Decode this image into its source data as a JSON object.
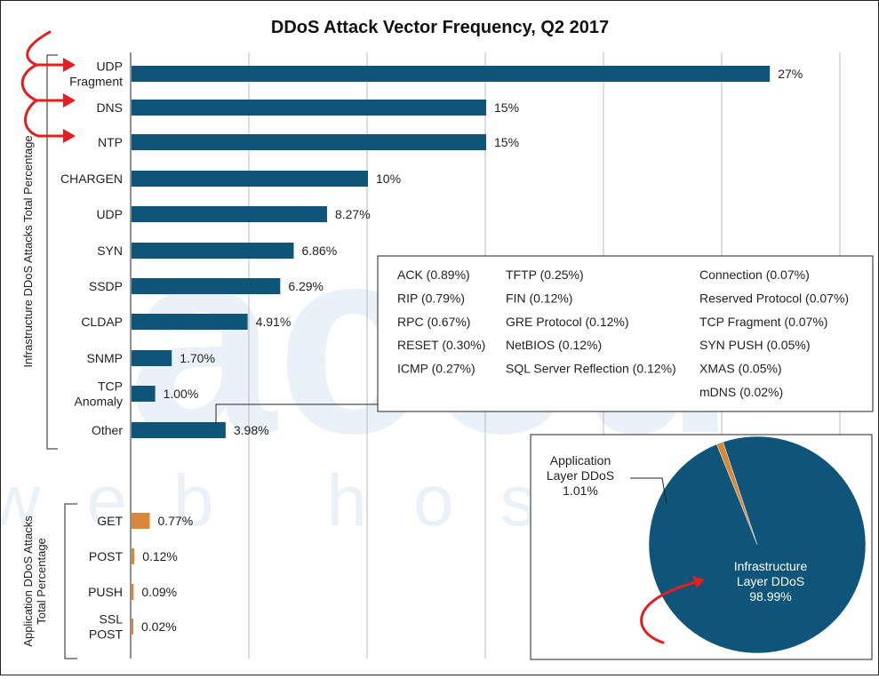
{
  "chart_data": {
    "type": "bar",
    "orientation": "horizontal",
    "title": "DDoS Attack Vector Frequency, Q2 2017",
    "xlim": [
      0,
      30
    ],
    "grid": true,
    "colors": {
      "infrastructure": "#0f5479",
      "application": "#d9883a"
    },
    "groups": [
      {
        "label": "Infrastructure DDoS Attacks Total Percentage",
        "color": "#0f5479",
        "bars": [
          {
            "category": "UDP Fragment",
            "lines": [
              "UDP",
              "Fragment"
            ],
            "value": 27,
            "label": "27%"
          },
          {
            "category": "DNS",
            "lines": [
              "DNS"
            ],
            "value": 15,
            "label": "15%"
          },
          {
            "category": "NTP",
            "lines": [
              "NTP"
            ],
            "value": 15,
            "label": "15%"
          },
          {
            "category": "CHARGEN",
            "lines": [
              "CHARGEN"
            ],
            "value": 10,
            "label": "10%"
          },
          {
            "category": "UDP",
            "lines": [
              "UDP"
            ],
            "value": 8.27,
            "label": "8.27%"
          },
          {
            "category": "SYN",
            "lines": [
              "SYN"
            ],
            "value": 6.86,
            "label": "6.86%"
          },
          {
            "category": "SSDP",
            "lines": [
              "SSDP"
            ],
            "value": 6.29,
            "label": "6.29%"
          },
          {
            "category": "CLDAP",
            "lines": [
              "CLDAP"
            ],
            "value": 4.91,
            "label": "4.91%"
          },
          {
            "category": "SNMP",
            "lines": [
              "SNMP"
            ],
            "value": 1.7,
            "label": "1.70%"
          },
          {
            "category": "TCP Anomaly",
            "lines": [
              "TCP",
              "Anomaly"
            ],
            "value": 1.0,
            "label": "1.00%"
          },
          {
            "category": "Other",
            "lines": [
              "Other"
            ],
            "value": 3.98,
            "label": "3.98%"
          }
        ]
      },
      {
        "label": "Application DDoS Attacks Total Percentage",
        "color": "#d9883a",
        "bars": [
          {
            "category": "GET",
            "lines": [
              "GET"
            ],
            "value": 0.77,
            "label": "0.77%"
          },
          {
            "category": "POST",
            "lines": [
              "POST"
            ],
            "value": 0.12,
            "label": "0.12%"
          },
          {
            "category": "PUSH",
            "lines": [
              "PUSH"
            ],
            "value": 0.09,
            "label": "0.09%"
          },
          {
            "category": "SSL POST",
            "lines": [
              "SSL",
              "POST"
            ],
            "value": 0.02,
            "label": "0.02%"
          }
        ]
      }
    ],
    "other_breakdown": [
      [
        "ACK (0.89%)",
        "TFTP (0.25%)",
        "Connection (0.07%)"
      ],
      [
        "RIP (0.79%)",
        "FIN (0.12%)",
        "Reserved Protocol (0.07%)"
      ],
      [
        "RPC (0.67%)",
        "GRE Protocol (0.12%)",
        "TCP Fragment (0.07%)"
      ],
      [
        "RESET (0.30%)",
        "NetBIOS (0.12%)",
        "SYN PUSH (0.05%)"
      ],
      [
        "ICMP (0.27%)",
        "SQL Server Reflection (0.12%)",
        "XMAS (0.05%)"
      ],
      [
        "",
        "",
        "mDNS (0.02%)"
      ]
    ],
    "pie": {
      "type": "pie",
      "slices": [
        {
          "name": "Application Layer DDoS",
          "lines": [
            "Application",
            "Layer DDoS",
            "1.01%"
          ],
          "value": 1.01,
          "color": "#d9883a"
        },
        {
          "name": "Infrastructure Layer DDoS",
          "lines": [
            "Infrastructure",
            "Layer DDoS",
            "98.99%"
          ],
          "value": 98.99,
          "color": "#0f5479"
        }
      ]
    }
  },
  "watermark": {
    "line1": "accu",
    "line2": "web hosting"
  },
  "annotation_color": "#e41e1e"
}
